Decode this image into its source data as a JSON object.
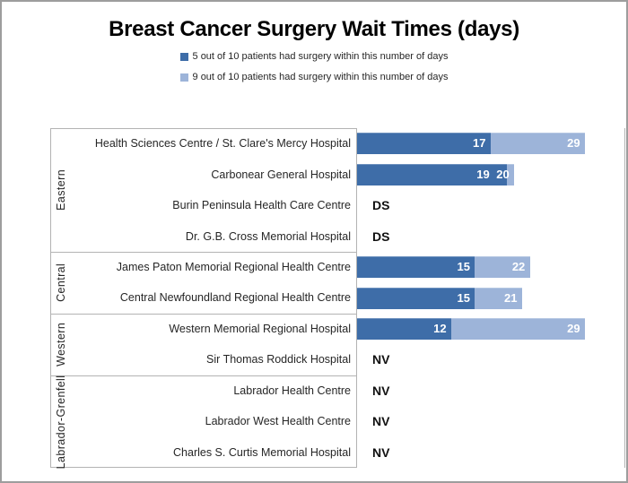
{
  "chart_data": {
    "type": "bar",
    "orientation": "horizontal",
    "stacked": true,
    "title": "Breast Cancer Surgery Wait Times (days)",
    "xlabel": "",
    "ylabel": "",
    "xlim": [
      0,
      34
    ],
    "axis_ticks_visible": false,
    "legend_position": "top-center",
    "series": [
      {
        "name": "5 out of 10 patients had surgery within this number of days",
        "color": "#3e6da8"
      },
      {
        "name": "9 out of 10 patients had surgery within this number of days",
        "color": "#9db4d9"
      }
    ],
    "value_semantics": "values = [days for 5 of 10 patients, days for 9 of 10 patients]; note = DS or NV when no bar shown",
    "groups": [
      {
        "region": "Eastern",
        "rows": [
          {
            "hospital": "Health Sciences Centre / St. Clare's Mercy Hospital",
            "values": [
              17,
              29
            ]
          },
          {
            "hospital": "Carbonear General Hospital",
            "values": [
              19,
              20
            ]
          },
          {
            "hospital": "Burin Peninsula Health Care Centre",
            "note": "DS"
          },
          {
            "hospital": "Dr. G.B. Cross Memorial Hospital",
            "note": "DS"
          }
        ]
      },
      {
        "region": "Central",
        "rows": [
          {
            "hospital": "James Paton Memorial Regional Health Centre",
            "values": [
              15,
              22
            ]
          },
          {
            "hospital": "Central Newfoundland Regional Health Centre",
            "values": [
              15,
              21
            ]
          }
        ]
      },
      {
        "region": "Western",
        "rows": [
          {
            "hospital": "Western Memorial Regional Hospital",
            "values": [
              12,
              29
            ]
          },
          {
            "hospital": "Sir Thomas Roddick Hospital",
            "note": "NV"
          }
        ]
      },
      {
        "region": "Labrador-Grenfell",
        "rows": [
          {
            "hospital": "Labrador Health Centre",
            "note": "NV"
          },
          {
            "hospital": "Labrador West Health Centre",
            "note": "NV"
          },
          {
            "hospital": "Charles S. Curtis Memorial Hospital",
            "note": "NV"
          }
        ]
      }
    ]
  }
}
